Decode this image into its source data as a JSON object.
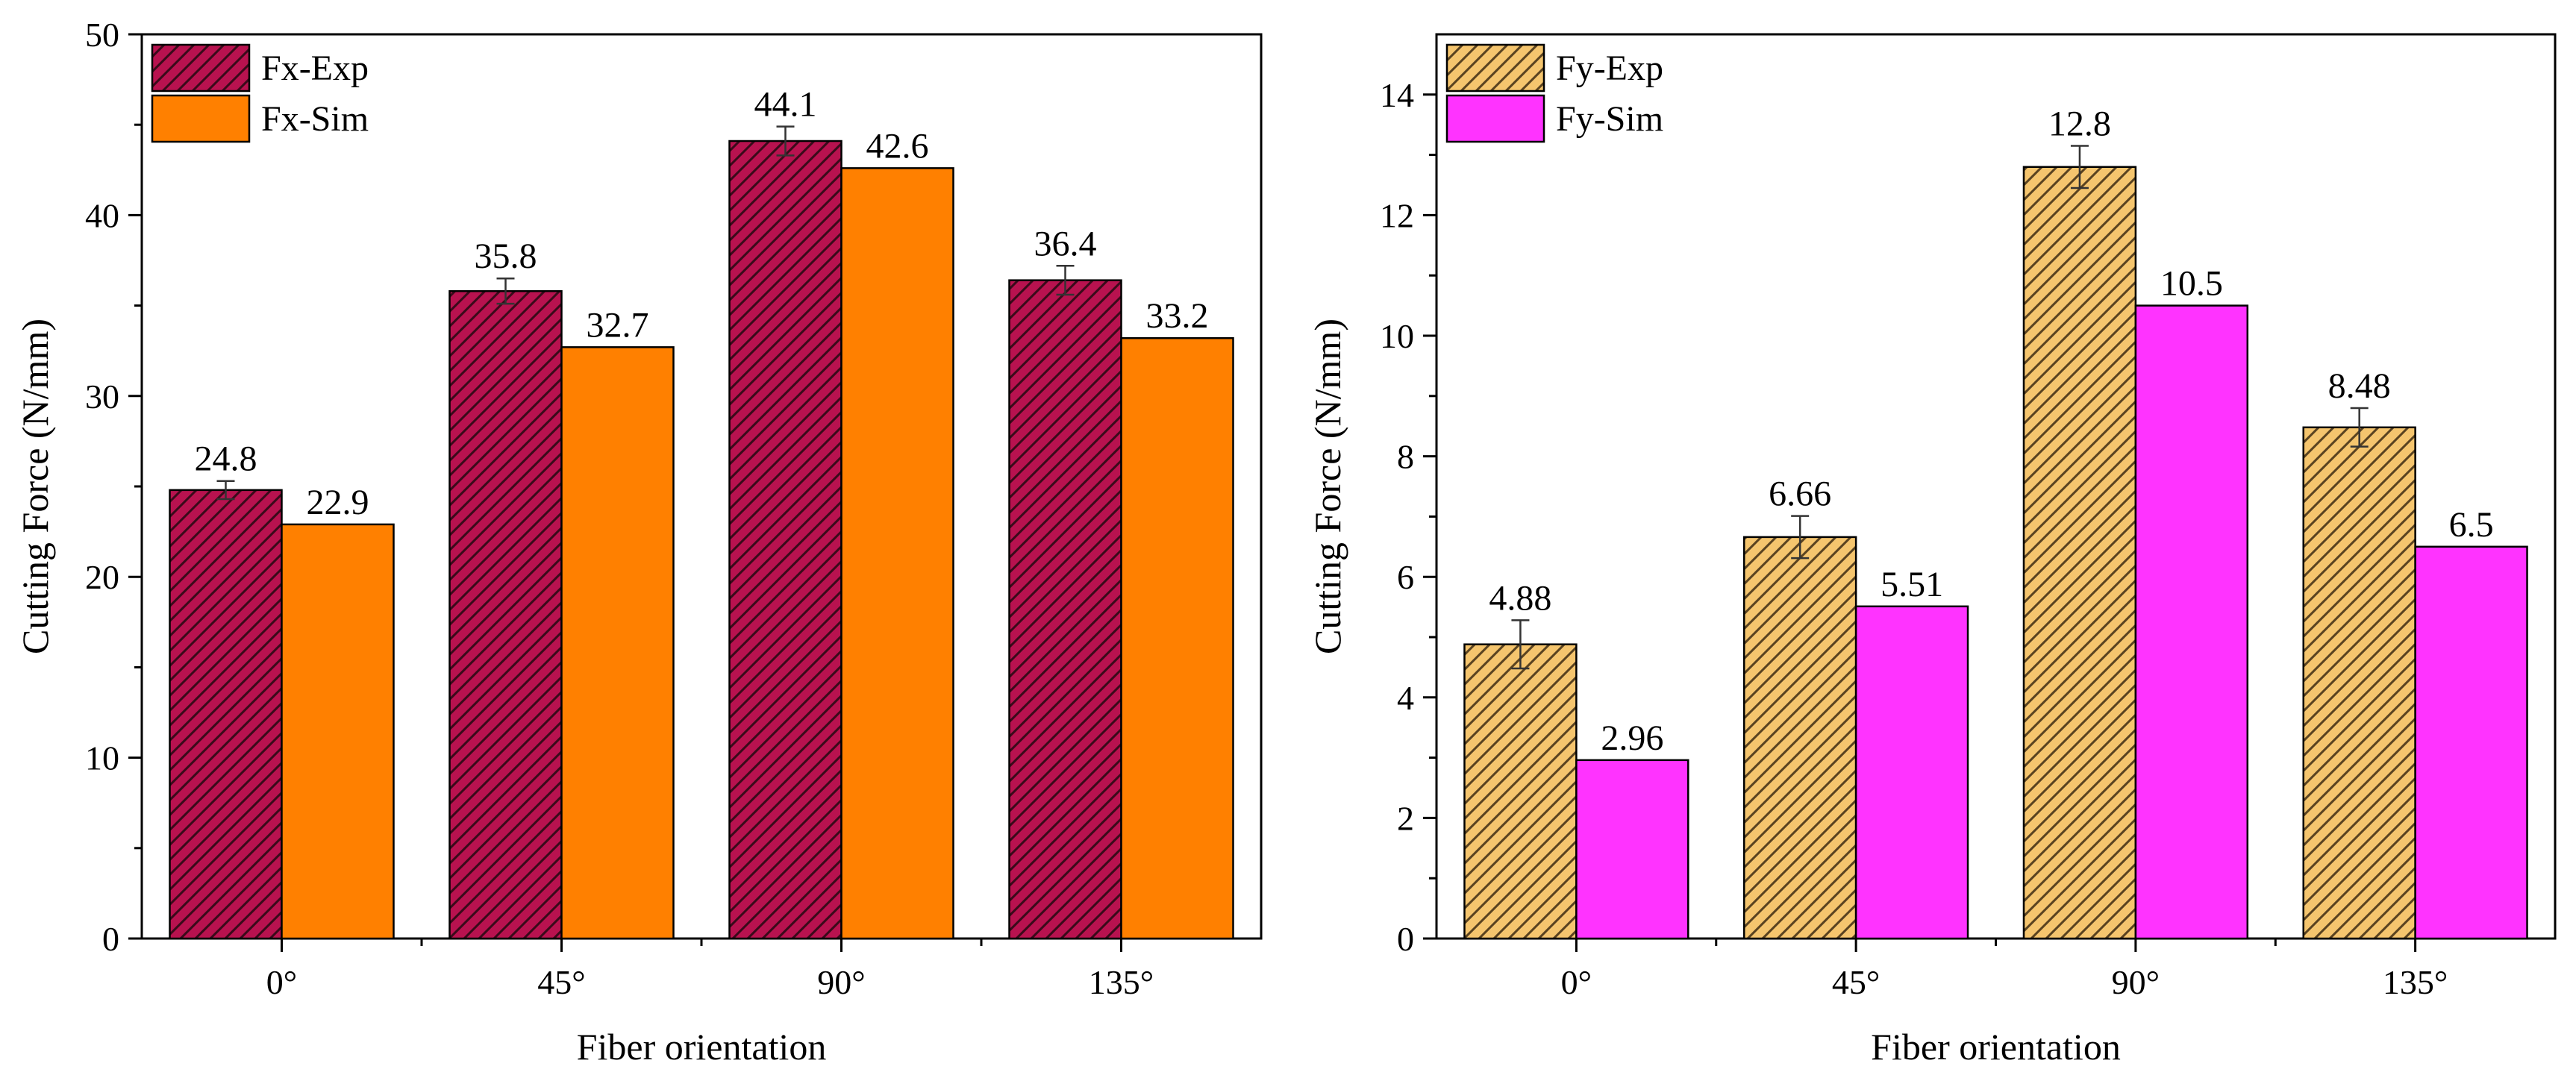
{
  "chart_data": [
    {
      "type": "bar",
      "title": "",
      "xlabel": "Fiber orientation",
      "ylabel": "Cutting Force (N/mm)",
      "categories": [
        "0°",
        "45°",
        "90°",
        "135°"
      ],
      "ylim": [
        0,
        50
      ],
      "yticks": [
        0,
        10,
        20,
        30,
        40,
        50
      ],
      "ytick_labels": [
        "0",
        "10",
        "20",
        "30",
        "40",
        "50"
      ],
      "legend_position": "top-left",
      "series": [
        {
          "name": "Fx-Exp",
          "values": [
            24.8,
            35.8,
            44.1,
            36.4
          ],
          "labels": [
            "24.8",
            "35.8",
            "44.1",
            "36.4"
          ],
          "error": [
            0.5,
            0.7,
            0.8,
            0.8
          ],
          "color": "#b8124f",
          "pattern": "hatch-dark"
        },
        {
          "name": "Fx-Sim",
          "values": [
            22.9,
            32.7,
            42.6,
            33.2
          ],
          "labels": [
            "22.9",
            "32.7",
            "42.6",
            "33.2"
          ],
          "color": "#ff8000",
          "pattern": "solid"
        }
      ]
    },
    {
      "type": "bar",
      "title": "",
      "xlabel": "Fiber orientation",
      "ylabel": "Cutting Force (N/mm)",
      "categories": [
        "0°",
        "45°",
        "90°",
        "135°"
      ],
      "ylim": [
        0,
        15
      ],
      "yticks": [
        0,
        2,
        4,
        6,
        8,
        10,
        12,
        14
      ],
      "ytick_labels": [
        "0",
        "2",
        "4",
        "6",
        "8",
        "10",
        "12",
        "14"
      ],
      "legend_position": "top-left",
      "series": [
        {
          "name": "Fy-Exp",
          "values": [
            4.88,
            6.66,
            12.8,
            8.48
          ],
          "labels": [
            "4.88",
            "6.66",
            "12.8",
            "8.48"
          ],
          "error": [
            0.4,
            0.35,
            0.35,
            0.32
          ],
          "color": "#f5c56e",
          "pattern": "hatch-light"
        },
        {
          "name": "Fy-Sim",
          "values": [
            2.96,
            5.51,
            10.5,
            6.5
          ],
          "labels": [
            "2.96",
            "5.51",
            "10.5",
            "6.5"
          ],
          "color": "#ff33ff",
          "pattern": "solid"
        }
      ]
    }
  ]
}
